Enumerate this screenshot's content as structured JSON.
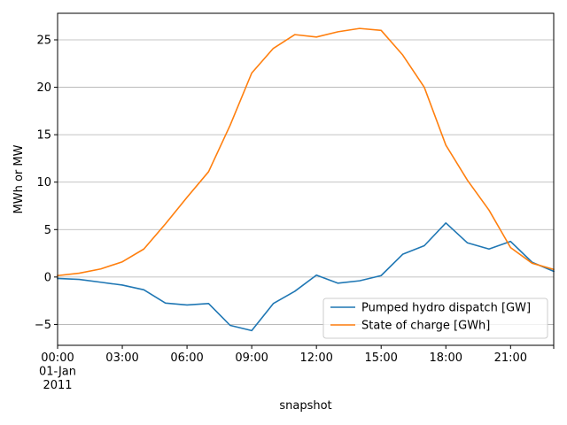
{
  "chart_data": {
    "type": "line",
    "title": "",
    "xlabel": "snapshot",
    "ylabel": "MWh or MW",
    "xlim": [
      0,
      23
    ],
    "ylim": [
      -7.2,
      27.8
    ],
    "grid": "horizontal",
    "legend_position": "lower-right",
    "x": [
      0,
      1,
      2,
      3,
      4,
      5,
      6,
      7,
      8,
      9,
      10,
      11,
      12,
      13,
      14,
      15,
      16,
      17,
      18,
      19,
      20,
      21,
      22,
      23
    ],
    "x_tick_positions": [
      0,
      3,
      6,
      9,
      12,
      15,
      18,
      21,
      23
    ],
    "x_tick_labels": [
      "00:00\n01-Jan\n2011",
      "03:00",
      "06:00",
      "09:00",
      "12:00",
      "15:00",
      "18:00",
      "21:00",
      ""
    ],
    "y_ticks": [
      -5,
      0,
      5,
      10,
      15,
      20,
      25
    ],
    "y_tick_labels": [
      "−5",
      "0",
      "5",
      "10",
      "15",
      "20",
      "25"
    ],
    "series": [
      {
        "name": "Pumped hydro dispatch [GW]",
        "color": "#1f77b4",
        "values": [
          -0.15,
          -0.25,
          -0.55,
          -0.85,
          -1.35,
          -2.75,
          -2.95,
          -2.8,
          -5.1,
          -5.65,
          -2.8,
          -1.5,
          0.2,
          -0.65,
          -0.4,
          0.15,
          2.4,
          3.3,
          5.7,
          3.6,
          2.95,
          3.75,
          1.55,
          0.6
        ]
      },
      {
        "name": "State of charge [GWh]",
        "color": "#ff7f0e",
        "values": [
          0.15,
          0.4,
          0.85,
          1.6,
          2.95,
          5.6,
          8.4,
          11.1,
          16.0,
          21.5,
          24.1,
          25.55,
          25.3,
          25.85,
          26.2,
          26.0,
          23.4,
          20.0,
          13.9,
          10.2,
          7.05,
          3.1,
          1.45,
          0.8
        ]
      }
    ]
  }
}
